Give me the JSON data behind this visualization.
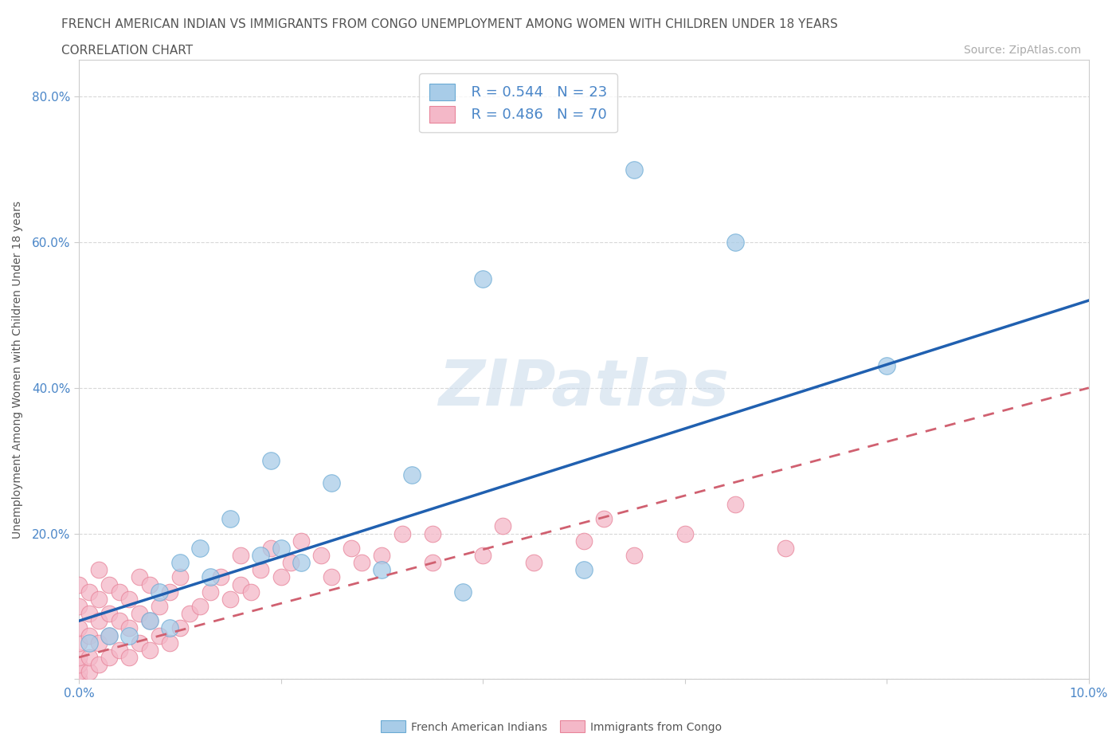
{
  "title_line1": "FRENCH AMERICAN INDIAN VS IMMIGRANTS FROM CONGO UNEMPLOYMENT AMONG WOMEN WITH CHILDREN UNDER 18 YEARS",
  "title_line2": "CORRELATION CHART",
  "source": "Source: ZipAtlas.com",
  "ylabel": "Unemployment Among Women with Children Under 18 years",
  "xlim": [
    0,
    0.1
  ],
  "ylim": [
    0,
    0.85
  ],
  "legend_blue_label": "French American Indians",
  "legend_pink_label": "Immigrants from Congo",
  "legend_r_blue": "R = 0.544",
  "legend_n_blue": "N = 23",
  "legend_r_pink": "R = 0.486",
  "legend_n_pink": "N = 70",
  "blue_color": "#a8cce8",
  "pink_color": "#f4b8c8",
  "blue_edge_color": "#6aaad4",
  "pink_edge_color": "#e8849a",
  "trendline_blue_color": "#2060b0",
  "trendline_pink_color": "#d06070",
  "watermark": "ZIPatlas",
  "blue_x": [
    0.001,
    0.003,
    0.005,
    0.007,
    0.008,
    0.009,
    0.01,
    0.012,
    0.013,
    0.015,
    0.018,
    0.019,
    0.02,
    0.022,
    0.025,
    0.03,
    0.033,
    0.038,
    0.04,
    0.05,
    0.055,
    0.065,
    0.08
  ],
  "blue_y": [
    0.05,
    0.06,
    0.06,
    0.08,
    0.12,
    0.07,
    0.16,
    0.18,
    0.14,
    0.22,
    0.17,
    0.3,
    0.18,
    0.16,
    0.27,
    0.15,
    0.28,
    0.12,
    0.55,
    0.15,
    0.7,
    0.6,
    0.43
  ],
  "pink_x": [
    0.0,
    0.0,
    0.0,
    0.0,
    0.0,
    0.0,
    0.0,
    0.0,
    0.001,
    0.001,
    0.001,
    0.001,
    0.001,
    0.002,
    0.002,
    0.002,
    0.002,
    0.002,
    0.003,
    0.003,
    0.003,
    0.003,
    0.004,
    0.004,
    0.004,
    0.005,
    0.005,
    0.005,
    0.006,
    0.006,
    0.006,
    0.007,
    0.007,
    0.007,
    0.008,
    0.008,
    0.009,
    0.009,
    0.01,
    0.01,
    0.011,
    0.012,
    0.013,
    0.014,
    0.015,
    0.016,
    0.016,
    0.017,
    0.018,
    0.019,
    0.02,
    0.021,
    0.022,
    0.024,
    0.025,
    0.027,
    0.028,
    0.03,
    0.032,
    0.035,
    0.035,
    0.04,
    0.042,
    0.045,
    0.05,
    0.052,
    0.055,
    0.06,
    0.065,
    0.07
  ],
  "pink_y": [
    0.0,
    0.01,
    0.02,
    0.03,
    0.05,
    0.07,
    0.1,
    0.13,
    0.01,
    0.03,
    0.06,
    0.09,
    0.12,
    0.02,
    0.05,
    0.08,
    0.11,
    0.15,
    0.03,
    0.06,
    0.09,
    0.13,
    0.04,
    0.08,
    0.12,
    0.03,
    0.07,
    0.11,
    0.05,
    0.09,
    0.14,
    0.04,
    0.08,
    0.13,
    0.06,
    0.1,
    0.05,
    0.12,
    0.07,
    0.14,
    0.09,
    0.1,
    0.12,
    0.14,
    0.11,
    0.13,
    0.17,
    0.12,
    0.15,
    0.18,
    0.14,
    0.16,
    0.19,
    0.17,
    0.14,
    0.18,
    0.16,
    0.17,
    0.2,
    0.16,
    0.2,
    0.17,
    0.21,
    0.16,
    0.19,
    0.22,
    0.17,
    0.2,
    0.24,
    0.18
  ],
  "blue_trendline_x0": 0.0,
  "blue_trendline_y0": 0.08,
  "blue_trendline_x1": 0.1,
  "blue_trendline_y1": 0.52,
  "pink_trendline_x0": 0.0,
  "pink_trendline_y0": 0.03,
  "pink_trendline_x1": 0.1,
  "pink_trendline_y1": 0.4,
  "title_fontsize": 11,
  "subtitle_fontsize": 11,
  "source_fontsize": 10,
  "axis_label_fontsize": 10,
  "tick_fontsize": 11,
  "legend_fontsize": 13,
  "background_color": "#ffffff",
  "grid_color": "#d8d8d8",
  "grid_style": "--"
}
